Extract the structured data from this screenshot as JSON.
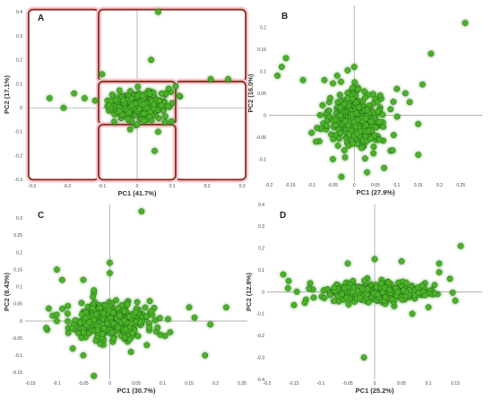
{
  "colors": {
    "point": "#4cb328",
    "point_stroke": "#1e5e1a",
    "glow": "#c7f3b8",
    "axis": "#999999",
    "region": "#8a2e1e",
    "region_fill": "#f4c9d2"
  },
  "chart_data": [
    {
      "type": "scatter",
      "panel_label": "A",
      "xlabel": "PC1 (41.7%)",
      "ylabel": "PC2 (17.1%)",
      "xlim": [
        -0.32,
        0.32
      ],
      "ylim": [
        -0.31,
        0.42
      ],
      "xticks": [
        -0.3,
        -0.2,
        -0.1,
        0,
        0.1,
        0.2,
        0.3
      ],
      "xtick_labels": [
        "-0.3",
        "-0.2",
        "-0.1",
        "0",
        "0.1",
        "0.2",
        "0.3"
      ],
      "yticks": [
        -0.3,
        -0.2,
        -0.1,
        0,
        0.1,
        0.2,
        0.3,
        0.4
      ],
      "ytick_labels": [
        "-0.3",
        "-0.2",
        "-0.1",
        "0",
        "0.1",
        "0.2",
        "0.3",
        "0.4"
      ],
      "cluster": {
        "cx": 0.0,
        "cy": 0.01,
        "sx": 0.04,
        "sy": 0.028,
        "n": 360
      },
      "outliers": [
        [
          0.06,
          0.4
        ],
        [
          -0.1,
          0.14
        ],
        [
          -0.25,
          0.04
        ],
        [
          -0.21,
          0.0
        ],
        [
          -0.18,
          0.06
        ],
        [
          -0.15,
          0.04
        ],
        [
          -0.12,
          0.03
        ],
        [
          -0.08,
          0.01
        ],
        [
          0.09,
          0.08
        ],
        [
          0.1,
          0.02
        ],
        [
          0.07,
          0.06
        ],
        [
          0.11,
          0.09
        ],
        [
          0.04,
          0.2
        ],
        [
          0.21,
          0.12
        ],
        [
          0.26,
          0.12
        ],
        [
          0.12,
          0.05
        ],
        [
          0.08,
          -0.06
        ],
        [
          0.06,
          -0.1
        ],
        [
          0.05,
          -0.18
        ],
        [
          0.0,
          -0.07
        ],
        [
          -0.02,
          -0.09
        ]
      ],
      "regions": [
        {
          "xmin": -0.31,
          "xmax": -0.11,
          "ymin": -0.3,
          "ymax": 0.41
        },
        {
          "xmin": -0.11,
          "xmax": 0.31,
          "ymin": 0.11,
          "ymax": 0.41
        },
        {
          "xmin": 0.11,
          "xmax": 0.31,
          "ymin": -0.3,
          "ymax": 0.11
        },
        {
          "xmin": -0.11,
          "xmax": 0.11,
          "ymin": -0.07,
          "ymax": 0.11
        },
        {
          "xmin": -0.11,
          "xmax": 0.11,
          "ymin": -0.3,
          "ymax": -0.07
        }
      ]
    },
    {
      "type": "scatter",
      "panel_label": "B",
      "xlabel": "PC1 (27.9%)",
      "ylabel": "PC2 (16.0%)",
      "xlim": [
        -0.2,
        0.3
      ],
      "ylim": [
        -0.15,
        0.25
      ],
      "xticks": [
        -0.2,
        -0.15,
        -0.1,
        -0.05,
        0,
        0.05,
        0.1,
        0.15,
        0.2,
        0.25
      ],
      "xtick_labels": [
        "-0.2",
        "-0.15",
        "-0.1",
        "-0.05",
        "0",
        "0.05",
        "0.1",
        "0.15",
        "0.2",
        "0.25"
      ],
      "yticks": [
        -0.1,
        -0.05,
        0,
        0.05,
        0.1,
        0.15,
        0.2
      ],
      "ytick_labels": [
        "-0.1",
        "-0.05",
        "0",
        "0.05",
        "0.1",
        "0.15",
        "0.2"
      ],
      "cluster": {
        "cx": 0.0,
        "cy": -0.01,
        "sx": 0.035,
        "sy": 0.032,
        "n": 340
      },
      "outliers": [
        [
          0.26,
          0.21
        ],
        [
          0.18,
          0.14
        ],
        [
          0.16,
          0.07
        ],
        [
          0.12,
          0.05
        ],
        [
          0.13,
          0.03
        ],
        [
          0.1,
          0.06
        ],
        [
          -0.16,
          0.13
        ],
        [
          -0.17,
          0.11
        ],
        [
          -0.18,
          0.09
        ],
        [
          -0.12,
          0.08
        ],
        [
          -0.07,
          0.08
        ],
        [
          -0.04,
          0.09
        ],
        [
          0.0,
          0.11
        ],
        [
          0.15,
          -0.02
        ],
        [
          0.15,
          -0.09
        ],
        [
          -0.1,
          -0.04
        ],
        [
          -0.09,
          -0.06
        ],
        [
          -0.05,
          -0.1
        ],
        [
          -0.03,
          -0.14
        ],
        [
          0.03,
          -0.13
        ],
        [
          0.07,
          -0.12
        ],
        [
          0.09,
          -0.08
        ]
      ]
    },
    {
      "type": "scatter",
      "panel_label": "C",
      "xlabel": "PC1 (30.7%)",
      "ylabel": "PC2 (8.43%)",
      "xlim": [
        -0.16,
        0.26
      ],
      "ylim": [
        -0.17,
        0.34
      ],
      "xticks": [
        -0.15,
        -0.1,
        -0.05,
        0,
        0.05,
        0.1,
        0.15,
        0.2,
        0.25
      ],
      "xtick_labels": [
        "-0.15",
        "-0.1",
        "-0.05",
        "0",
        "0.05",
        "0.1",
        "0.15",
        "0.2",
        "0.25"
      ],
      "yticks": [
        -0.15,
        -0.1,
        -0.05,
        0,
        0.05,
        0.1,
        0.15,
        0.2,
        0.25,
        0.3
      ],
      "ytick_labels": [
        "-0.15",
        "-0.1",
        "-0.05",
        "0",
        "0.05",
        "0.1",
        "0.15",
        "0.2",
        "0.25",
        "0.3"
      ],
      "cluster": {
        "cx": 0.0,
        "cy": 0.0,
        "sx": 0.038,
        "sy": 0.028,
        "n": 360
      },
      "outliers": [
        [
          0.06,
          0.32
        ],
        [
          -0.1,
          0.15
        ],
        [
          -0.09,
          0.12
        ],
        [
          -0.05,
          0.12
        ],
        [
          -0.03,
          0.09
        ],
        [
          0.0,
          0.17
        ],
        [
          0.0,
          0.14
        ],
        [
          0.15,
          0.04
        ],
        [
          0.16,
          0.01
        ],
        [
          0.18,
          -0.1
        ],
        [
          0.22,
          0.04
        ],
        [
          0.19,
          -0.01
        ],
        [
          -0.12,
          -0.02
        ],
        [
          -0.1,
          0.0
        ],
        [
          -0.07,
          -0.08
        ],
        [
          -0.05,
          -0.1
        ],
        [
          -0.03,
          -0.16
        ],
        [
          0.04,
          -0.09
        ],
        [
          0.07,
          -0.07
        ]
      ]
    },
    {
      "type": "scatter",
      "panel_label": "D",
      "xlabel": "PC1 (25.2%)",
      "ylabel": "PC2 (12.8%)",
      "xlim": [
        -0.2,
        0.2
      ],
      "ylim": [
        -0.4,
        0.4
      ],
      "xticks": [
        -0.2,
        -0.15,
        -0.1,
        -0.05,
        0,
        0.05,
        0.1,
        0.15
      ],
      "xtick_labels": [
        "-0.2",
        "-0.15",
        "-0.1",
        "-0.05",
        "0",
        "0.05",
        "0.1",
        "0.15"
      ],
      "yticks": [
        -0.4,
        -0.3,
        -0.2,
        -0.1,
        0,
        0.1,
        0.2,
        0.3,
        0.4
      ],
      "ytick_labels": [
        "-0.4",
        "-0.3",
        "-0.2",
        "-0.1",
        "0",
        "0.1",
        "0.2",
        "0.3",
        "0.4"
      ],
      "cluster": {
        "cx": 0.0,
        "cy": 0.0,
        "sx": 0.045,
        "sy": 0.022,
        "n": 380
      },
      "outliers": [
        [
          0.16,
          0.21
        ],
        [
          0.12,
          0.13
        ],
        [
          0.12,
          0.09
        ],
        [
          0.14,
          0.06
        ],
        [
          -0.17,
          0.08
        ],
        [
          -0.16,
          0.05
        ],
        [
          -0.12,
          0.04
        ],
        [
          -0.15,
          -0.06
        ],
        [
          -0.13,
          -0.05
        ],
        [
          -0.02,
          -0.3
        ],
        [
          0.05,
          0.14
        ],
        [
          -0.05,
          0.13
        ],
        [
          0.0,
          0.15
        ],
        [
          0.1,
          -0.07
        ],
        [
          0.07,
          -0.1
        ],
        [
          0.15,
          -0.04
        ]
      ]
    }
  ]
}
